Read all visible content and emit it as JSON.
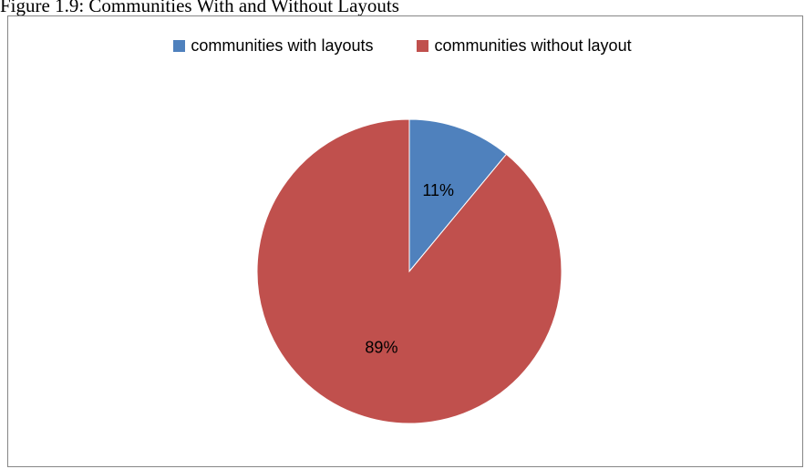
{
  "figure": {
    "caption": "Figure 1.9: Communities With and Without Layouts"
  },
  "chart_data": {
    "type": "pie",
    "categories": [
      "communities with layouts",
      "communities without layout"
    ],
    "values": [
      11,
      89
    ],
    "data_labels": [
      "11%",
      "89%"
    ],
    "colors": [
      "#4F81BD",
      "#C0504D"
    ],
    "start_angle_deg": 0,
    "direction": "clockwise",
    "legend_position": "top",
    "title": ""
  }
}
